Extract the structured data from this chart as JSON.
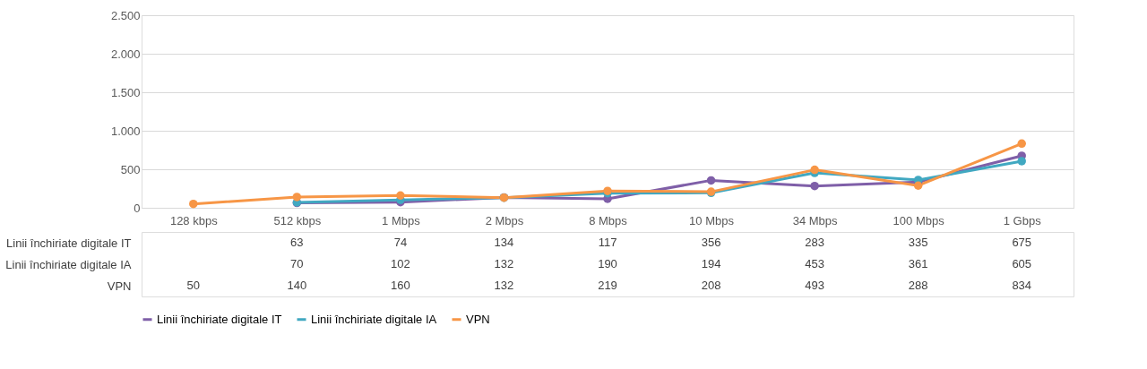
{
  "chart_data": {
    "type": "line",
    "categories": [
      "128 kbps",
      "512 kbps",
      "1 Mbps",
      "2 Mbps",
      "8 Mbps",
      "10 Mbps",
      "34 Mbps",
      "100 Mbps",
      "1 Gbps"
    ],
    "series": [
      {
        "name": "Linii închiriate digitale IT",
        "color": "#7f5fa8",
        "values": [
          null,
          63,
          74,
          134,
          117,
          356,
          283,
          335,
          675
        ]
      },
      {
        "name": "Linii închiriate digitale IA",
        "color": "#41a8c1",
        "values": [
          null,
          70,
          102,
          132,
          190,
          194,
          453,
          361,
          605
        ]
      },
      {
        "name": "VPN",
        "color": "#f79646",
        "values": [
          50,
          140,
          160,
          132,
          219,
          208,
          493,
          288,
          834
        ]
      }
    ],
    "ylim": [
      0,
      2500
    ],
    "yticks": [
      0,
      {
        "value": 500,
        "label": "500"
      },
      {
        "value": 1000,
        "label": "1.000"
      },
      {
        "value": 1500,
        "label": "1.500"
      },
      {
        "value": 2000,
        "label": "2.000"
      },
      {
        "value": 2500,
        "label": "2.500"
      }
    ],
    "grid": "y",
    "marker": "circle",
    "line_style": "solid",
    "legend": "bottom",
    "data_labels": true
  }
}
